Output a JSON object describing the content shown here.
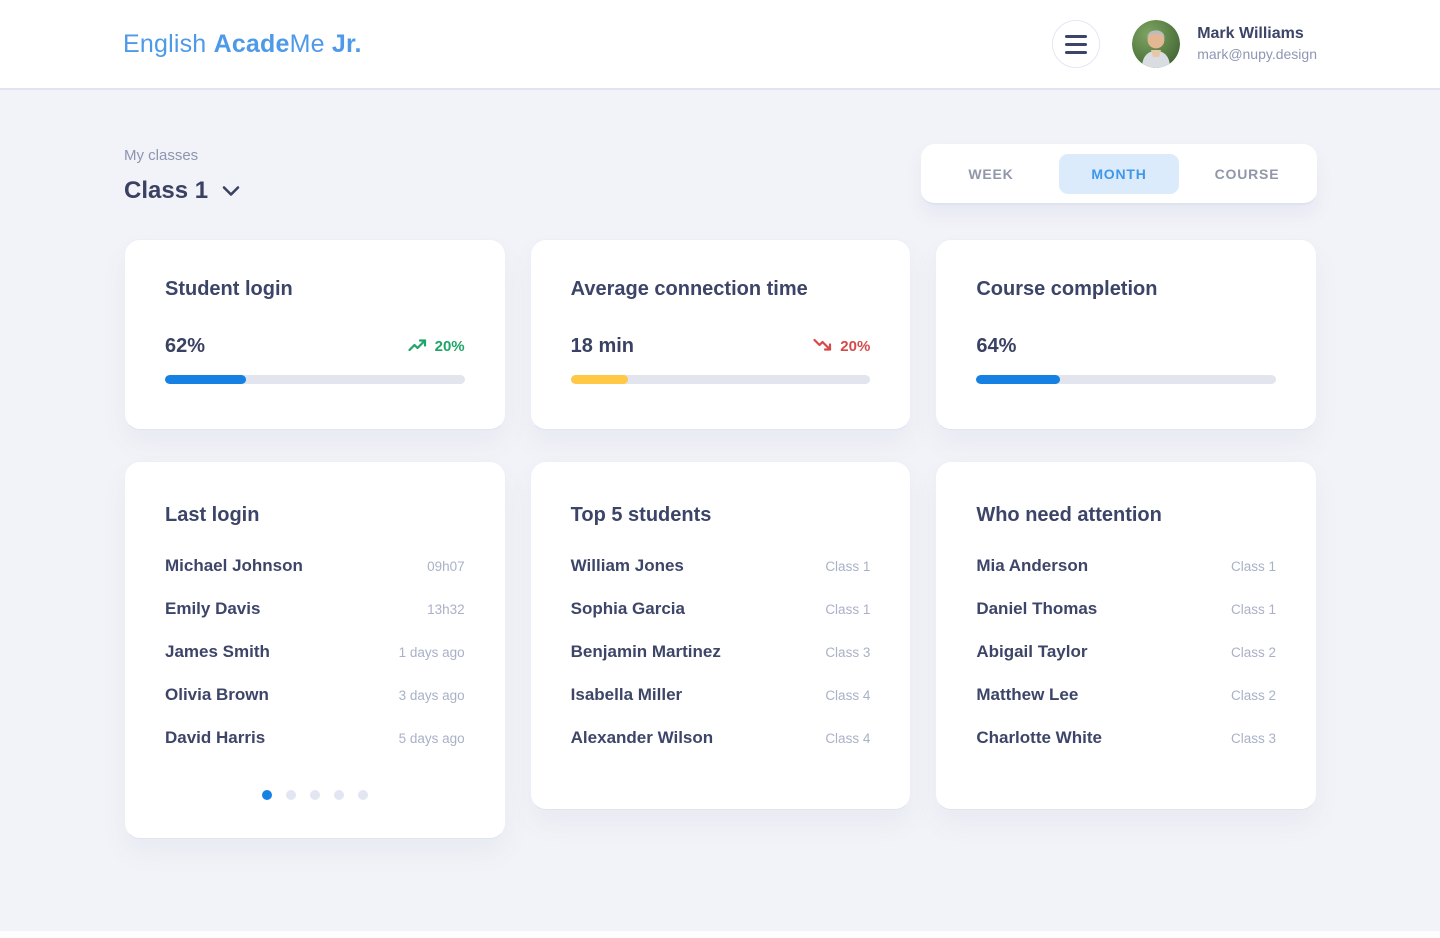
{
  "header": {
    "logo_parts": {
      "p1": "English",
      "p2": "Acade",
      "p3": "Me",
      "p4": "Jr."
    },
    "user": {
      "name": "Mark Williams",
      "email": "mark@nupy.design"
    },
    "menu_icon": "hamburger-icon"
  },
  "page": {
    "eyebrow": "My classes",
    "class_selector": {
      "label": "Class 1",
      "icon": "chevron-down-icon"
    },
    "tabs": [
      {
        "label": "WEEK",
        "active": false
      },
      {
        "label": "MONTH",
        "active": true
      },
      {
        "label": "COURSE",
        "active": false
      }
    ]
  },
  "stats": [
    {
      "title": "Student login",
      "value": "62%",
      "trend": {
        "direction": "up",
        "value": "20%",
        "color": "#1EA567",
        "icon": "trend-up-icon"
      },
      "bar": {
        "percent": 27,
        "color": "#1781E3"
      }
    },
    {
      "title": "Average connection time",
      "value": "18 min",
      "trend": {
        "direction": "down",
        "value": "20%",
        "color": "#D5494B",
        "icon": "trend-down-icon"
      },
      "bar": {
        "percent": 19,
        "color": "#FFC845"
      }
    },
    {
      "title": "Course completion",
      "value": "64%",
      "trend": null,
      "bar": {
        "percent": 28,
        "color": "#1781E3"
      }
    }
  ],
  "lists": [
    {
      "title": "Last login",
      "rows": [
        {
          "name": "Michael Johnson",
          "value": "09h07"
        },
        {
          "name": "Emily Davis",
          "value": "13h32"
        },
        {
          "name": "James Smith",
          "value": "1 days ago"
        },
        {
          "name": "Olivia Brown",
          "value": "3 days ago"
        },
        {
          "name": "David Harris",
          "value": "5 days ago"
        }
      ],
      "pagination": {
        "dot_count": 5,
        "active_index": 0
      }
    },
    {
      "title": "Top 5 students",
      "rows": [
        {
          "name": "William Jones",
          "value": "Class 1"
        },
        {
          "name": "Sophia Garcia",
          "value": "Class 1"
        },
        {
          "name": "Benjamin Martinez",
          "value": "Class 3"
        },
        {
          "name": "Isabella Miller",
          "value": "Class 4"
        },
        {
          "name": "Alexander Wilson",
          "value": "Class 4"
        }
      ]
    },
    {
      "title": "Who need attention",
      "rows": [
        {
          "name": "Mia Anderson",
          "value": "Class 1"
        },
        {
          "name": "Daniel Thomas",
          "value": "Class 1"
        },
        {
          "name": "Abigail Taylor",
          "value": "Class 2"
        },
        {
          "name": "Matthew Lee",
          "value": "Class 2"
        },
        {
          "name": "Charlotte White",
          "value": "Class 3"
        }
      ]
    }
  ],
  "colors": {
    "accent_blue": "#1781E3",
    "accent_yellow": "#FFC845",
    "positive_green": "#1EA567",
    "negative_red": "#D5494B",
    "tab_active_bg": "#DCEBFB",
    "tab_active_text": "#3E97E9",
    "logo_blue": "#4E9AE8",
    "background": "#F2F3F8",
    "card_bg": "#FFFFFF",
    "text_dark": "#3C4468",
    "text_muted": "#A9B1C7"
  }
}
